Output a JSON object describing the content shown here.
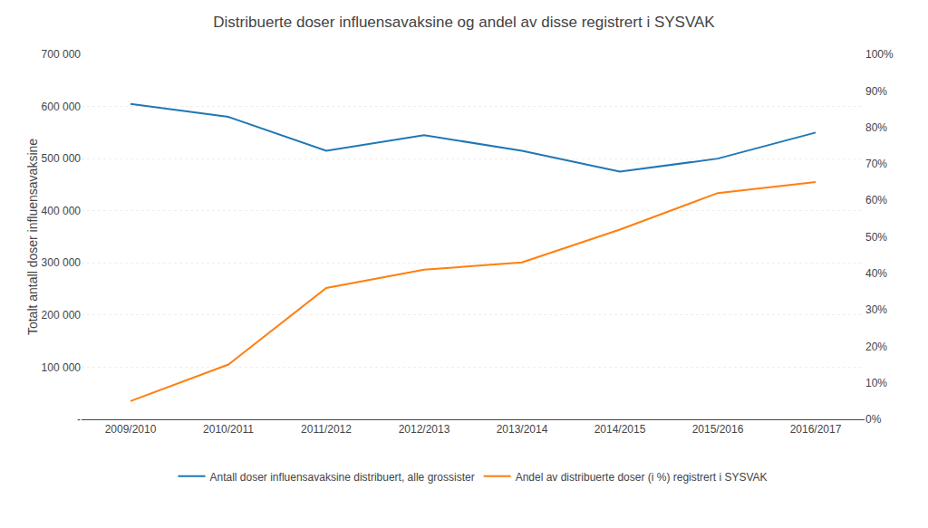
{
  "chart_data": {
    "type": "line",
    "title": "Distribuerte doser influensavaksine og andel av disse registrert i SYSVAK",
    "ylabel": "Totalt antall doser influensavaksine",
    "categories": [
      "2009/2010",
      "2010/2011",
      "2011/2012",
      "2012/2013",
      "2013/2014",
      "2014/2015",
      "2015/2016",
      "2016/2017"
    ],
    "series": [
      {
        "name": "Antall doser influensavaksine distribuert, alle grossister",
        "values": [
          605000,
          580000,
          515000,
          545000,
          515000,
          475000,
          500000,
          550000
        ]
      },
      {
        "name": "Andel av distribuerte doser (i %) registrert i SYSVAK",
        "values": [
          5,
          15,
          36,
          41,
          43,
          52,
          62,
          65
        ],
        "axis": "y2"
      }
    ],
    "ylim": [
      0,
      700000
    ],
    "yticks": [
      {
        "value": 0,
        "label": "-"
      },
      {
        "value": 100000,
        "label": "100 000"
      },
      {
        "value": 200000,
        "label": "200 000"
      },
      {
        "value": 300000,
        "label": "300 000"
      },
      {
        "value": 400000,
        "label": "400 000"
      },
      {
        "value": 500000,
        "label": "500 000"
      },
      {
        "value": 600000,
        "label": "600 000"
      },
      {
        "value": 700000,
        "label": "700 000"
      }
    ],
    "y2lim": [
      0,
      100
    ],
    "y2ticks": [
      {
        "value": 0,
        "label": "0%"
      },
      {
        "value": 10,
        "label": "10%"
      },
      {
        "value": 20,
        "label": "20%"
      },
      {
        "value": 30,
        "label": "30%"
      },
      {
        "value": 40,
        "label": "40%"
      },
      {
        "value": 50,
        "label": "50%"
      },
      {
        "value": 60,
        "label": "60%"
      },
      {
        "value": 70,
        "label": "70%"
      },
      {
        "value": 80,
        "label": "80%"
      },
      {
        "value": 90,
        "label": "90%"
      },
      {
        "value": 100,
        "label": "100%"
      }
    ],
    "grid": true,
    "legend": "bottom"
  }
}
